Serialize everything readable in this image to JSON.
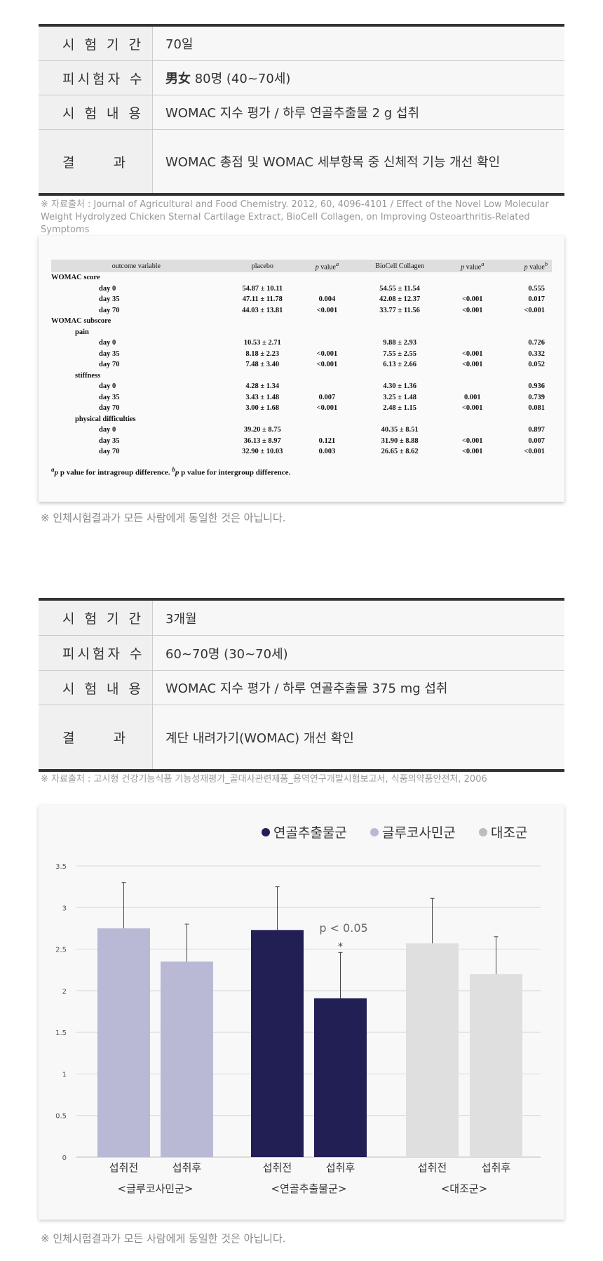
{
  "study1": {
    "rows": [
      {
        "label": "시 험 기 간",
        "value": "70일"
      },
      {
        "label": "피시험자 수",
        "value_bold": "男女",
        "value": " 80명 (40~70세)"
      },
      {
        "label": "시 험 내 용",
        "value": "WOMAC 지수 평가 / 하루 연골추출물 2 g 섭취"
      },
      {
        "label_a": "결",
        "label_b": "과",
        "value": "WOMAC 총점 및 WOMAC 세부항목 중 신체적 기능 개선 확인"
      }
    ],
    "source": "※ 자료출처 : Journal of Agricultural and Food Chemistry. 2012, 60, 4096-4101 / Effect of the Novel Low Molecular Weight Hydrolyzed Chicken Sternal Cartilage Extract, BioCell Collagen, on Improving Osteoarthritis-Related Symptoms",
    "table": {
      "headers": [
        "outcome variable",
        "placebo",
        "p value",
        "BioCell Collagen",
        "p value",
        "p value"
      ],
      "header_sups": [
        "",
        "",
        "a",
        "",
        "a",
        "b"
      ],
      "rows": [
        {
          "label": "WOMAC score",
          "level": 0,
          "cells": [
            "",
            "",
            "",
            "",
            ""
          ]
        },
        {
          "label": "day 0",
          "level": 2,
          "cells": [
            "54.87 ± 10.11",
            "",
            "54.55 ± 11.54",
            "",
            "0.555"
          ]
        },
        {
          "label": "day 35",
          "level": 2,
          "cells": [
            "47.11 ± 11.78",
            "0.004",
            "42.08 ± 12.37",
            "<0.001",
            "0.017"
          ]
        },
        {
          "label": "day 70",
          "level": 2,
          "cells": [
            "44.03 ± 13.81",
            "<0.001",
            "33.77 ± 11.56",
            "<0.001",
            "<0.001"
          ]
        },
        {
          "label": "WOMAC subscore",
          "level": 0,
          "cells": [
            "",
            "",
            "",
            "",
            ""
          ]
        },
        {
          "label": "pain",
          "level": 1,
          "cells": [
            "",
            "",
            "",
            "",
            ""
          ]
        },
        {
          "label": "day 0",
          "level": 2,
          "cells": [
            "10.53 ± 2.71",
            "",
            "9.88 ± 2.93",
            "",
            "0.726"
          ]
        },
        {
          "label": "day 35",
          "level": 2,
          "cells": [
            "8.18 ± 2.23",
            "<0.001",
            "7.55 ± 2.55",
            "<0.001",
            "0.332"
          ]
        },
        {
          "label": "day 70",
          "level": 2,
          "cells": [
            "7.48 ± 3.40",
            "<0.001",
            "6.13 ± 2.66",
            "<0.001",
            "0.052"
          ]
        },
        {
          "label": "stiffness",
          "level": 1,
          "cells": [
            "",
            "",
            "",
            "",
            ""
          ]
        },
        {
          "label": "day 0",
          "level": 2,
          "cells": [
            "4.28 ± 1.34",
            "",
            "4.30 ± 1.36",
            "",
            "0.936"
          ]
        },
        {
          "label": "day 35",
          "level": 2,
          "cells": [
            "3.43 ± 1.48",
            "0.007",
            "3.25 ± 1.48",
            "0.001",
            "0.739"
          ]
        },
        {
          "label": "day 70",
          "level": 2,
          "cells": [
            "3.00 ± 1.68",
            "<0.001",
            "2.48 ± 1.15",
            "<0.001",
            "0.081"
          ]
        },
        {
          "label": "physical difficulties",
          "level": 1,
          "cells": [
            "",
            "",
            "",
            "",
            ""
          ]
        },
        {
          "label": "day 0",
          "level": 2,
          "cells": [
            "39.20 ± 8.75",
            "",
            "40.35 ± 8.51",
            "",
            "0.897"
          ]
        },
        {
          "label": "day 35",
          "level": 2,
          "cells": [
            "36.13 ± 8.97",
            "0.121",
            "31.90 ± 8.88",
            "<0.001",
            "0.007"
          ]
        },
        {
          "label": "day 70",
          "level": 2,
          "cells": [
            "32.90 ± 10.03",
            "0.003",
            "26.65 ± 8.62",
            "<0.001",
            "<0.001"
          ]
        }
      ],
      "footnote_a": "p value for intragroup difference.",
      "footnote_b": "p value for intergroup difference."
    },
    "note": "※ 인체시험결과가 모든 사람에게 동일한 것은 아닙니다."
  },
  "study2": {
    "rows": [
      {
        "label": "시 험 기 간",
        "value": "3개월"
      },
      {
        "label": "피시험자 수",
        "value": "60~70명 (30~70세)"
      },
      {
        "label": "시 험 내 용",
        "value": "WOMAC 지수 평가 / 하루 연골추출물 375 mg 섭취"
      },
      {
        "label_a": "결",
        "label_b": "과",
        "value": "계단 내려가기(WOMAC) 개선 확인"
      }
    ],
    "source": "※ 자료출처 : 고시형 건강기능식품 기능성재평가_골대사관련제품_용역연구개발시험보고서, 식품의약품안전처, 2006",
    "note": "※ 인체시험결과가 모든 사람에게 동일한 것은 아닙니다."
  },
  "chart_data": {
    "type": "bar",
    "legend": [
      {
        "name": "연골추출물군",
        "color": "#221f55"
      },
      {
        "name": "글루코사민군",
        "color": "#b9b9d6"
      },
      {
        "name": "대조군",
        "color": "#bdbdbd"
      }
    ],
    "legend_position": "top-right",
    "ylim": [
      0,
      3.5
    ],
    "yticks": [
      "0",
      "0.5",
      "1",
      "1.5",
      "2",
      "2.5",
      "3",
      "3.5"
    ],
    "grid": true,
    "groups": [
      {
        "label": "<글루코사민군>",
        "color": "#b9b9d6",
        "bars": [
          {
            "label": "섭취전",
            "value": 2.75,
            "error_top": 3.3
          },
          {
            "label": "섭취후",
            "value": 2.35,
            "error_top": 2.8
          }
        ]
      },
      {
        "label": "<연골추출물군>",
        "color": "#221f55",
        "bars": [
          {
            "label": "섭취전",
            "value": 2.73,
            "error_top": 3.25
          },
          {
            "label": "섭취후",
            "value": 1.91,
            "error_top": 2.46,
            "mark": "*"
          }
        ]
      },
      {
        "label": "<대조군>",
        "color": "#e0dfdf",
        "bars": [
          {
            "label": "섭취전",
            "value": 2.57,
            "error_top": 3.11
          },
          {
            "label": "섭취후",
            "value": 2.2,
            "error_top": 2.65
          }
        ]
      }
    ],
    "annotation": "p < 0.05"
  }
}
